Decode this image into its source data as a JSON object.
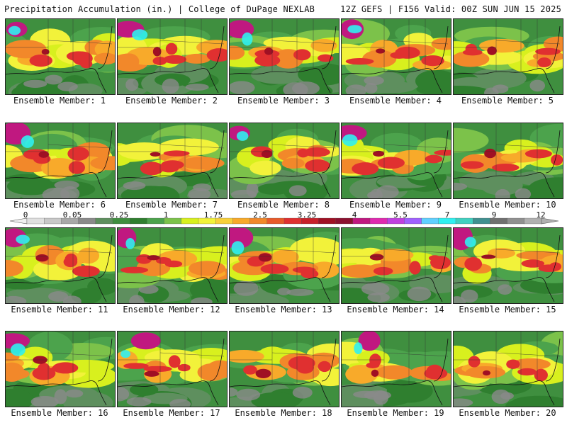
{
  "header": {
    "left_title": "Precipitation Accumulation (in.) | College of DuPage NEXLAB",
    "right_title": "12Z GEFS | F156 Valid: 00Z SUN JUN 15 2025"
  },
  "colorbar": {
    "tick_labels": [
      "0",
      "0.05",
      "0.25",
      "1",
      "1.75",
      "2.5",
      "3.25",
      "4",
      "5.5",
      "7",
      "9",
      "12"
    ],
    "colors": [
      "#e0e0e0",
      "#c8c8c8",
      "#a8a8a8",
      "#8a8a8a",
      "#5e8f5e",
      "#3f8f3f",
      "#2f7f2f",
      "#4ca34c",
      "#7cc24a",
      "#d8f01e",
      "#f2f23a",
      "#f8d03a",
      "#f8aa2a",
      "#f2882a",
      "#e85a2a",
      "#e03030",
      "#c8202a",
      "#a01024",
      "#8c1030",
      "#c01880",
      "#e02ab0",
      "#c040e0",
      "#a060ff",
      "#60d0ff",
      "#30f0f0",
      "#40d0c0",
      "#409090",
      "#707070",
      "#909090",
      "#b0b0b0"
    ]
  },
  "members": [
    {
      "label": "Ensemble Member: 1"
    },
    {
      "label": "Ensemble Member: 2"
    },
    {
      "label": "Ensemble Member: 3"
    },
    {
      "label": "Ensemble Member: 4"
    },
    {
      "label": "Ensemble Member: 5"
    },
    {
      "label": "Ensemble Member: 6"
    },
    {
      "label": "Ensemble Member: 7"
    },
    {
      "label": "Ensemble Member: 8"
    },
    {
      "label": "Ensemble Member: 9"
    },
    {
      "label": "Ensemble Member: 10"
    },
    {
      "label": "Ensemble Member: 11"
    },
    {
      "label": "Ensemble Member: 12"
    },
    {
      "label": "Ensemble Member: 13"
    },
    {
      "label": "Ensemble Member: 14"
    },
    {
      "label": "Ensemble Member: 15"
    },
    {
      "label": "Ensemble Member: 16"
    },
    {
      "label": "Ensemble Member: 17"
    },
    {
      "label": "Ensemble Member: 18"
    },
    {
      "label": "Ensemble Member: 19"
    },
    {
      "label": "Ensemble Member: 20"
    }
  ]
}
